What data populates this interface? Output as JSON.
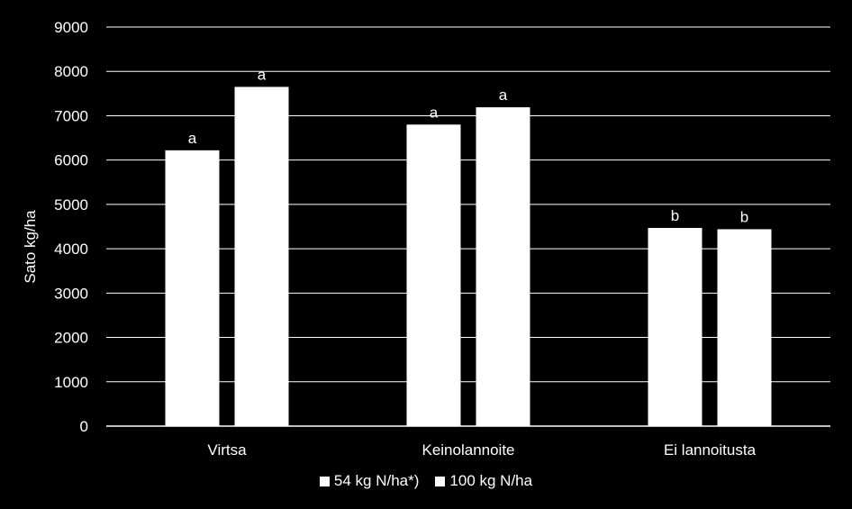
{
  "chart_data": {
    "type": "bar",
    "title": "",
    "xlabel": "",
    "ylabel": "Sato kg/ha",
    "ylim": [
      0,
      9000
    ],
    "yticks": [
      0,
      1000,
      2000,
      3000,
      4000,
      5000,
      6000,
      7000,
      8000,
      9000
    ],
    "grid": true,
    "legend_position": "bottom",
    "categories": [
      "Virtsa",
      "Keinolannoite",
      "Ei lannoitusta"
    ],
    "series": [
      {
        "name": "54 kg N/ha*)",
        "values": [
          6220,
          6800,
          4470
        ],
        "labels": [
          "a",
          "a",
          "b"
        ],
        "color": "#ffffff"
      },
      {
        "name": "100 kg N/ha",
        "values": [
          7650,
          7190,
          4440
        ],
        "labels": [
          "a",
          "a",
          "b"
        ],
        "color": "#ffffff"
      }
    ],
    "colors": {
      "background": "#000000",
      "gridline": "#ffffff",
      "text": "#ffffff"
    }
  }
}
